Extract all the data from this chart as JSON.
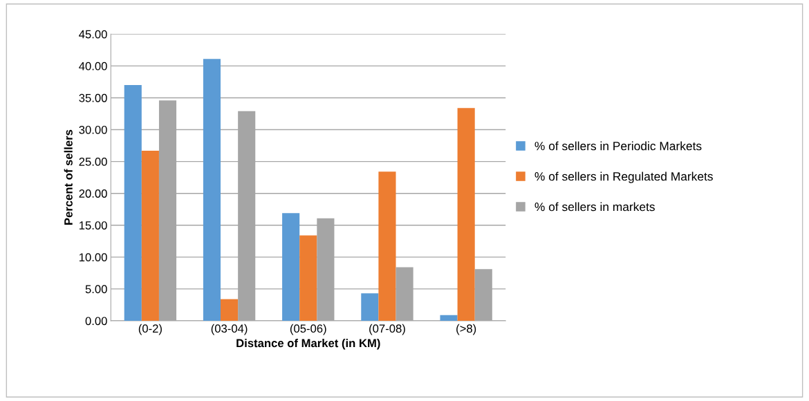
{
  "chart_data": {
    "type": "bar",
    "xlabel": "Distance of Market (in KM)",
    "ylabel": "Percent of sellers",
    "categories": [
      "(0-2)",
      "(03-04)",
      "(05-06)",
      "(07-08)",
      "(>8)"
    ],
    "series": [
      {
        "name": "% of sellers in Periodic Markets",
        "color": "#5b9bd5",
        "values": [
          37.0,
          41.1,
          16.9,
          4.3,
          0.9
        ]
      },
      {
        "name": "% of sellers in Regulated Markets",
        "color": "#ed7d31",
        "values": [
          26.7,
          3.4,
          13.4,
          23.4,
          33.4
        ]
      },
      {
        "name": "% of sellers in markets",
        "color": "#a5a5a5",
        "values": [
          34.6,
          32.9,
          16.1,
          8.4,
          8.1
        ]
      }
    ],
    "ylim": [
      0,
      45
    ],
    "yticks": [
      {
        "value": 0,
        "label": "0.00"
      },
      {
        "value": 5,
        "label": "5.00"
      },
      {
        "value": 10,
        "label": "10.00"
      },
      {
        "value": 15,
        "label": "15.00"
      },
      {
        "value": 20,
        "label": "20.00"
      },
      {
        "value": 25,
        "label": "25.00"
      },
      {
        "value": 30,
        "label": "30.00"
      },
      {
        "value": 35,
        "label": "35.00"
      },
      {
        "value": 40,
        "label": "40.00"
      },
      {
        "value": 45,
        "label": "45.00"
      }
    ],
    "grid": "y",
    "legend": "right"
  }
}
